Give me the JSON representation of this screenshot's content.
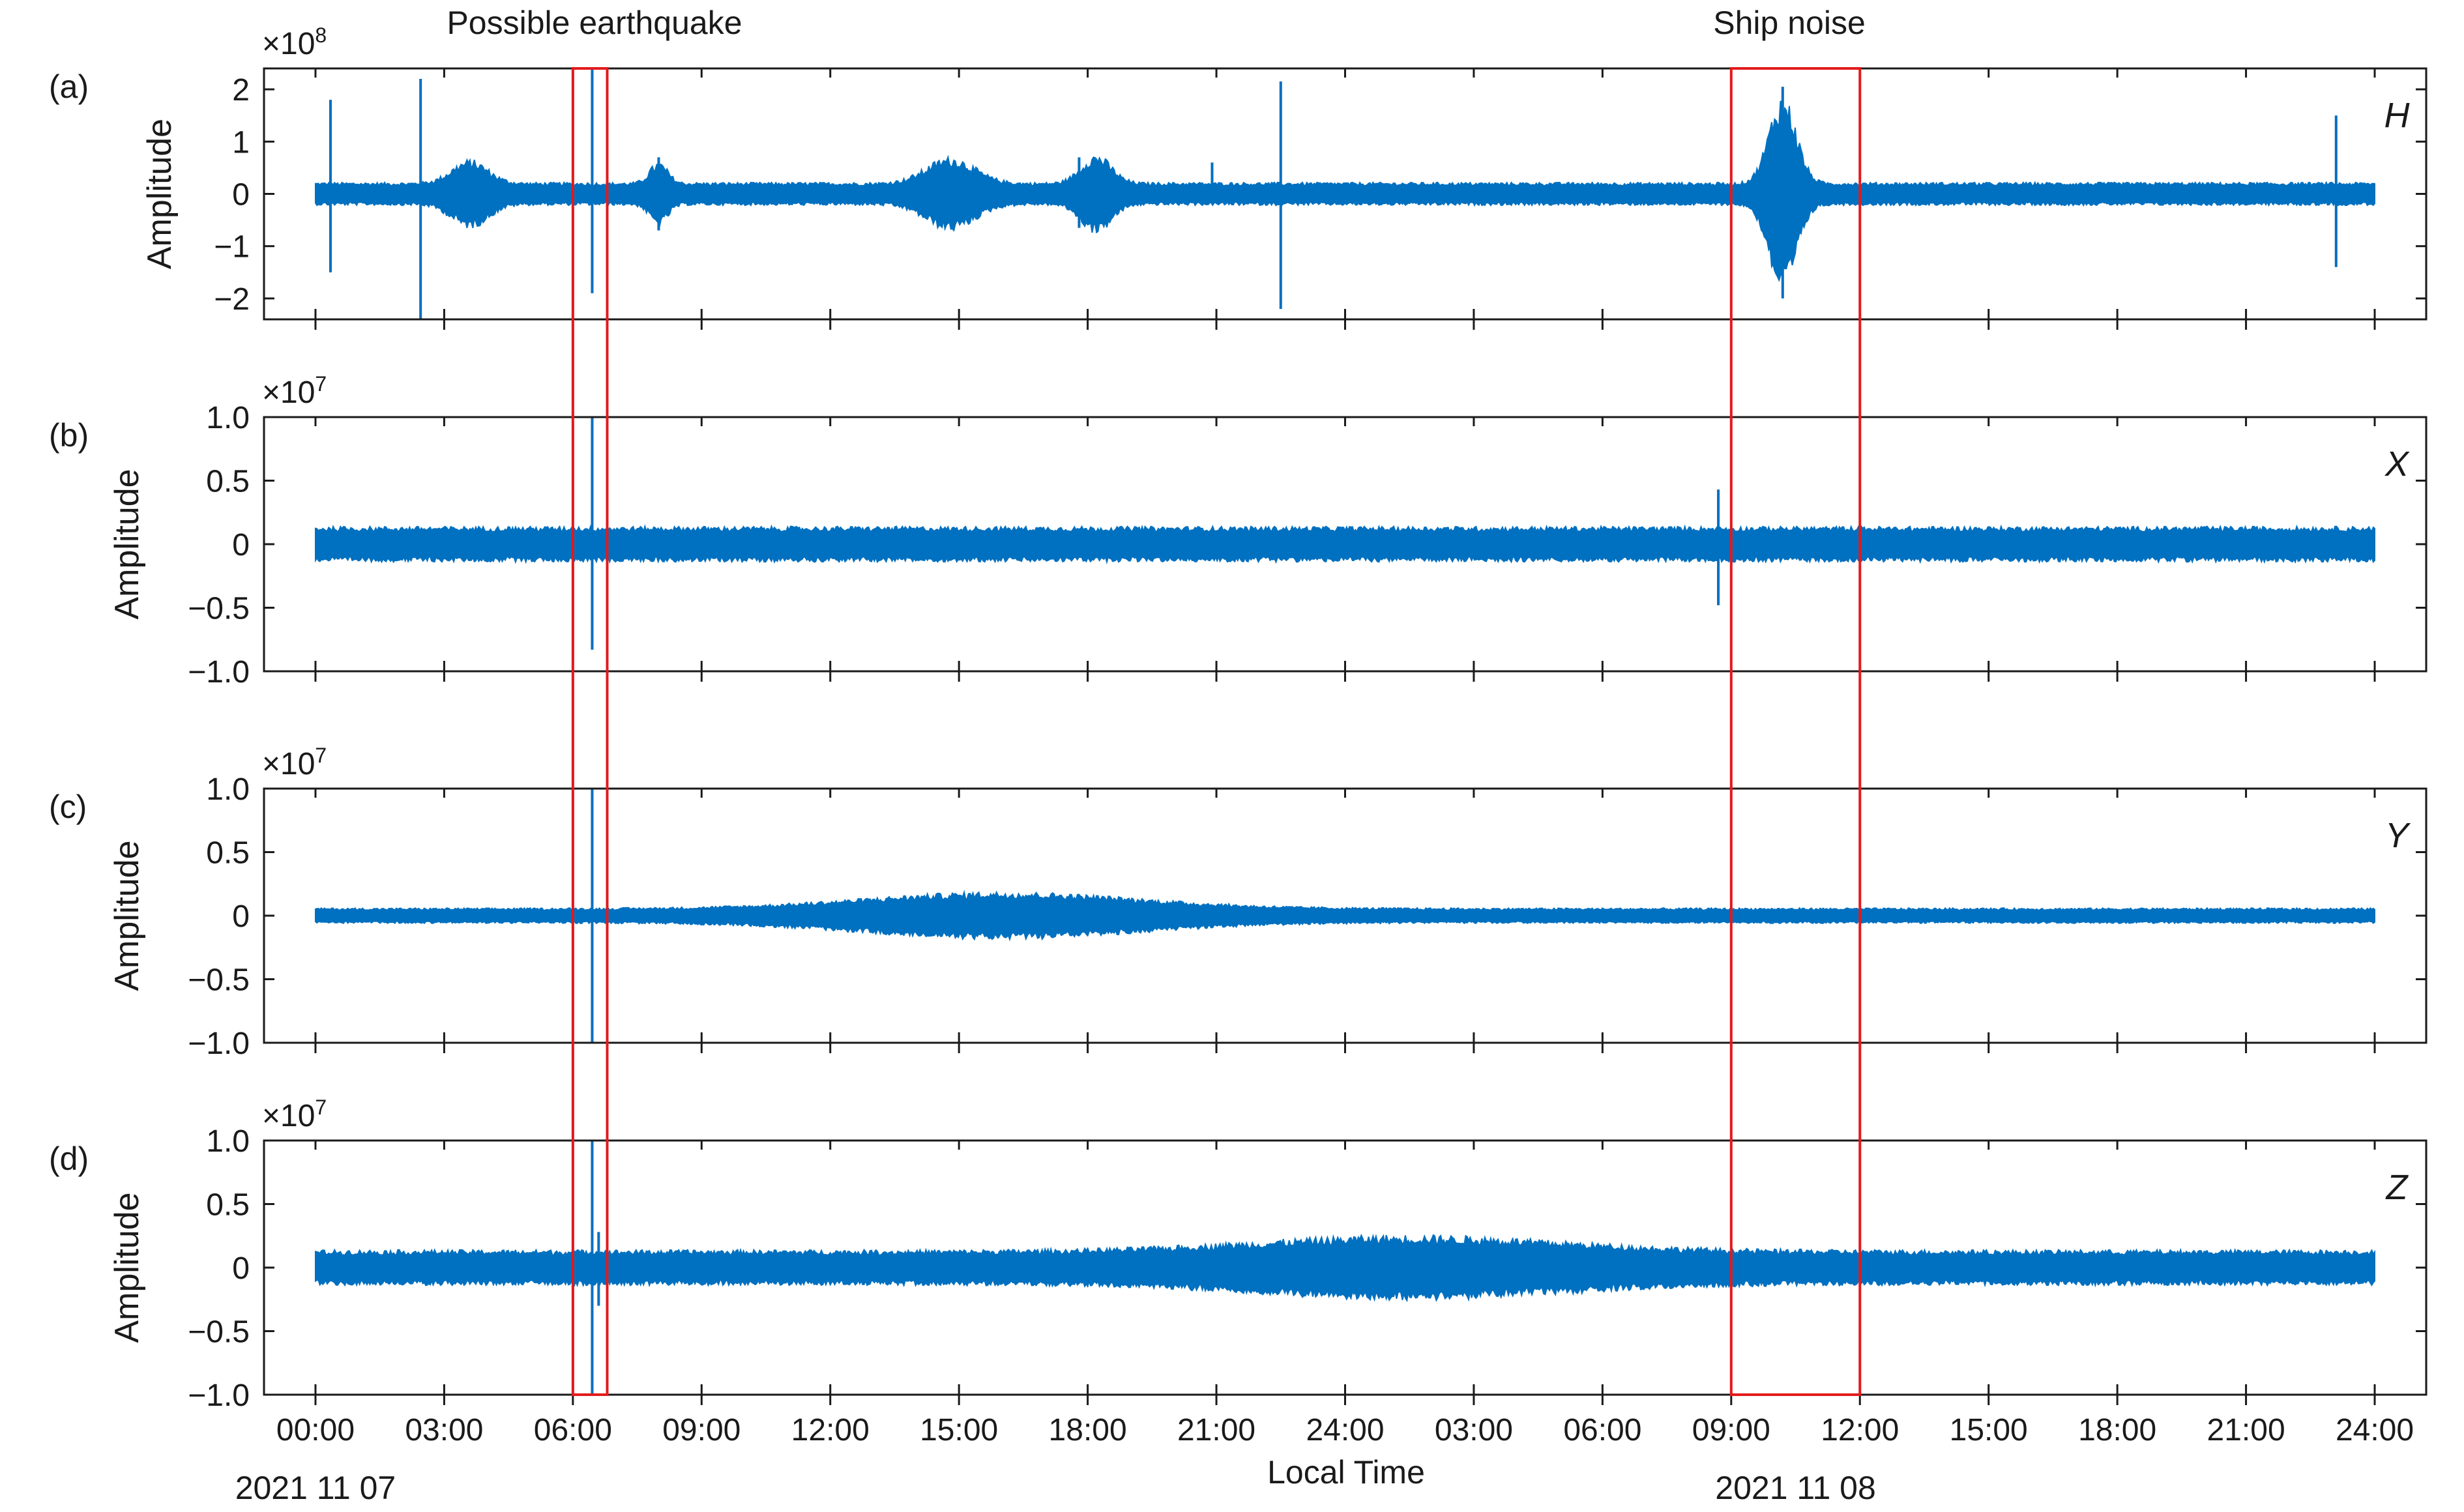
{
  "chart_data": {
    "type": "line",
    "annotations": {
      "earthquake": "Possible earthquake",
      "ship": "Ship noise"
    },
    "highlight_boxes": [
      {
        "name": "Possible earthquake",
        "x_start": 6.0,
        "x_end": 6.8
      },
      {
        "name": "Ship noise",
        "x_start": 33.0,
        "x_end": 36.0
      }
    ],
    "xaxis": {
      "label": "Local Time",
      "range_hours": [
        -1.2,
        49.2
      ],
      "ticks_hours": [
        0,
        3,
        6,
        9,
        12,
        15,
        18,
        21,
        24,
        27,
        30,
        33,
        36,
        39,
        42,
        45,
        48
      ],
      "tick_labels": [
        "00:00",
        "03:00",
        "06:00",
        "09:00",
        "12:00",
        "15:00",
        "18:00",
        "21:00",
        "24:00",
        "03:00",
        "06:00",
        "09:00",
        "12:00",
        "15:00",
        "18:00",
        "21:00",
        "24:00"
      ],
      "date_labels": [
        {
          "text": "2021 11 07",
          "at_hours": 0
        },
        {
          "text": "2021 11 08",
          "at_hours": 34.5
        }
      ]
    },
    "panels": [
      {
        "id": "a",
        "tag": "(a)",
        "component": "H",
        "ylabel": "Amplitude",
        "multiplier_base": "×10",
        "multiplier_exp": "8",
        "ylim": [
          -2.4,
          2.4
        ],
        "yticks": [
          -2,
          -1,
          0,
          1,
          2
        ],
        "ytick_labels": [
          "−2",
          "−1",
          "0",
          "1",
          "2"
        ],
        "base_amplitude": 0.22,
        "bumps": [
          {
            "t": 3.6,
            "w": 0.6,
            "a": 0.45
          },
          {
            "t": 8.0,
            "w": 0.3,
            "a": 0.4
          },
          {
            "t": 14.8,
            "w": 0.8,
            "a": 0.5
          },
          {
            "t": 18.2,
            "w": 0.5,
            "a": 0.55
          },
          {
            "t": 34.2,
            "w": 0.45,
            "a": 1.7
          }
        ],
        "spikes": [
          {
            "t": 0.35,
            "up": 1.8,
            "down": -1.5
          },
          {
            "t": 2.45,
            "up": 2.2,
            "down": -2.4
          },
          {
            "t": 6.45,
            "up": 2.4,
            "down": -1.9
          },
          {
            "t": 8.0,
            "up": 0.7,
            "down": -0.7
          },
          {
            "t": 17.8,
            "up": 0.7,
            "down": -0.65
          },
          {
            "t": 18.2,
            "up": 0.65,
            "down": -0.65
          },
          {
            "t": 20.9,
            "up": 0.6,
            "down": -0.2
          },
          {
            "t": 22.5,
            "up": 2.15,
            "down": -2.2
          },
          {
            "t": 34.2,
            "up": 2.05,
            "down": -2.0
          },
          {
            "t": 47.1,
            "up": 1.5,
            "down": -1.4
          }
        ]
      },
      {
        "id": "b",
        "tag": "(b)",
        "component": "X",
        "ylabel": "Amplitude",
        "multiplier_base": "×10",
        "multiplier_exp": "7",
        "ylim": [
          -1.0,
          1.0
        ],
        "yticks": [
          -1.0,
          -0.5,
          0,
          0.5,
          1.0
        ],
        "ytick_labels": [
          "−1.0",
          "−0.5",
          "0",
          "0.5",
          "1.0"
        ],
        "base_amplitude": 0.14,
        "bumps": [],
        "spikes": [
          {
            "t": 6.45,
            "up": 1.0,
            "down": -0.83
          },
          {
            "t": 32.7,
            "up": 0.43,
            "down": -0.48
          }
        ]
      },
      {
        "id": "c",
        "tag": "(c)",
        "component": "Y",
        "ylabel": "Amplitude",
        "multiplier_base": "×10",
        "multiplier_exp": "7",
        "ylim": [
          -1.0,
          1.0
        ],
        "yticks": [
          -1.0,
          -0.5,
          0,
          0.5,
          1.0
        ],
        "ytick_labels": [
          "−1.0",
          "−0.5",
          "0",
          "0.5",
          "1.0"
        ],
        "base_amplitude": 0.06,
        "bumps": [
          {
            "t": 16.0,
            "w": 4.5,
            "a": 0.13
          }
        ],
        "spikes": [
          {
            "t": 6.45,
            "up": 1.0,
            "down": -1.0
          }
        ]
      },
      {
        "id": "d",
        "tag": "(d)",
        "component": "Z",
        "ylabel": "Amplitude",
        "multiplier_base": "×10",
        "multiplier_exp": "7",
        "ylim": [
          -1.0,
          1.0
        ],
        "yticks": [
          -1.0,
          -0.5,
          0,
          0.5,
          1.0
        ],
        "ytick_labels": [
          "−1.0",
          "−0.5",
          "0",
          "0.5",
          "1.0"
        ],
        "base_amplitude": 0.14,
        "bumps": [
          {
            "t": 25.5,
            "w": 5.0,
            "a": 0.12
          }
        ],
        "spikes": [
          {
            "t": 6.45,
            "up": 1.0,
            "down": -1.0
          },
          {
            "t": 6.6,
            "up": 0.28,
            "down": -0.3
          }
        ]
      }
    ]
  },
  "colors": {
    "signal": "#0070c0",
    "box": "#e31a1c",
    "axis": "#1a1a1a"
  }
}
